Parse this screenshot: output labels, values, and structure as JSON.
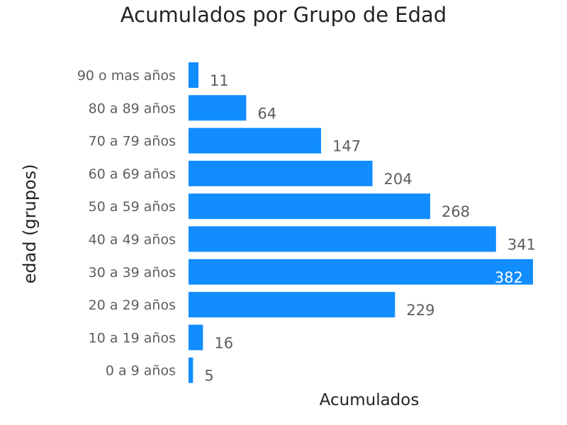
{
  "chart_data": {
    "type": "bar",
    "orientation": "horizontal",
    "title": "Acumulados por Grupo de Edad",
    "xlabel": "Acumulados",
    "ylabel": "edad (grupos)",
    "categories": [
      "90 o mas años",
      "80 a 89 años",
      "70 a 79 años",
      "60 a 69 años",
      "50 a 59 años",
      "40 a 49 años",
      "30 a 39 años",
      "20 a 29 años",
      "10 a 19 años",
      "0 a 9 años"
    ],
    "values": [
      11,
      64,
      147,
      204,
      268,
      341,
      382,
      229,
      16,
      5
    ],
    "xlim": [
      0,
      382
    ],
    "grid": false,
    "legend": "none",
    "bar_color": "#118DFF",
    "label_color_outside": "#605E5C",
    "label_color_inside": "#FFFFFF"
  }
}
